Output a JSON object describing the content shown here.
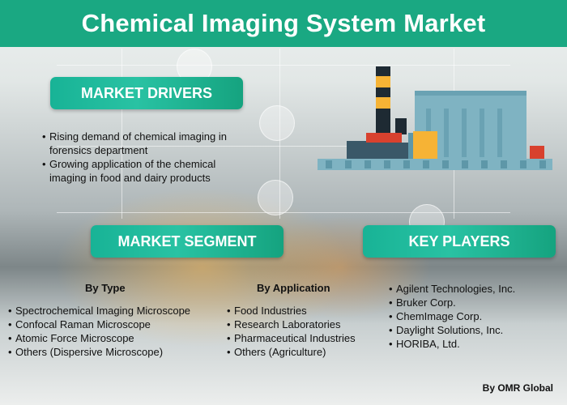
{
  "header": {
    "title": "Chemical Imaging System Market"
  },
  "drivers": {
    "heading": "MARKET DRIVERS",
    "items": [
      "Rising demand of chemical imaging in forensics department",
      "Growing application of the chemical imaging in food and dairy products"
    ]
  },
  "segment": {
    "heading": "MARKET SEGMENT",
    "by_type": {
      "title": "By Type",
      "items": [
        "Spectrochemical Imaging Microscope",
        "Confocal Raman Microscope",
        "Atomic Force Microscope",
        "Others (Dispersive Microscope)"
      ]
    },
    "by_application": {
      "title": "By Application",
      "items": [
        "Food Industries",
        "Research Laboratories",
        "Pharmaceutical Industries",
        "Others (Agriculture)"
      ]
    }
  },
  "players": {
    "heading": "KEY PLAYERS",
    "items": [
      "Agilent Technologies, Inc.",
      "Bruker Corp.",
      "ChemImage Corp.",
      "Daylight Solutions, Inc.",
      "HORIBA, Ltd."
    ]
  },
  "footer": {
    "credit": "By OMR Global"
  },
  "colors": {
    "header": "#1aa882",
    "pill": "#22b99a",
    "factory_body": "#7fb3c2",
    "factory_accent": "#f6b335",
    "factory_red": "#d8412e"
  },
  "icons": [
    "factory-illustration",
    "recycle-icon",
    "plug-icon",
    "cloud-icon",
    "drop-icon"
  ]
}
